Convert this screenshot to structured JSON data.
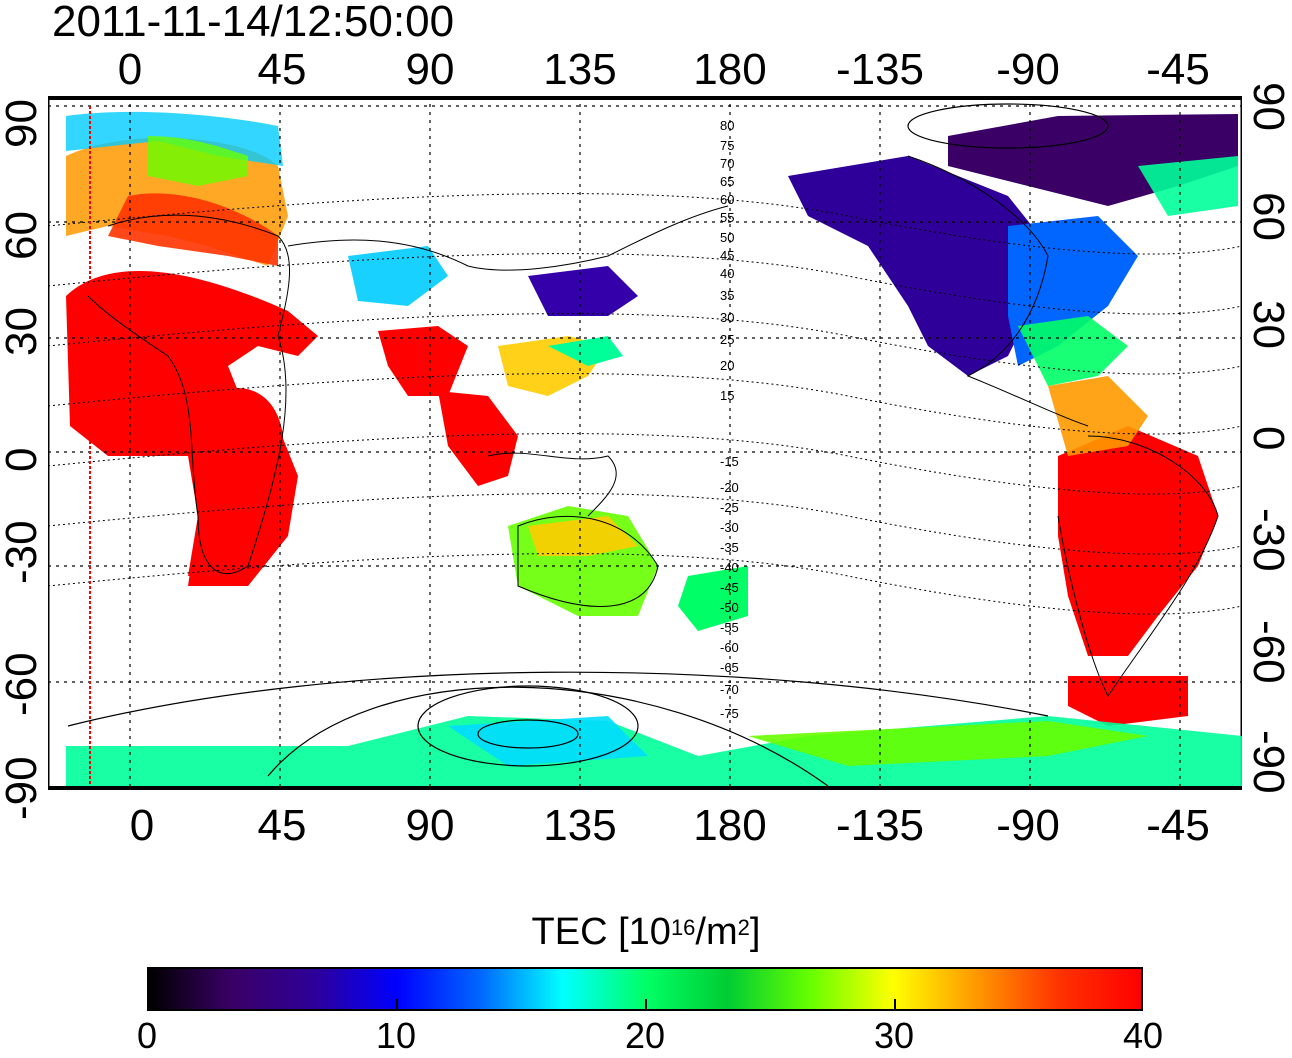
{
  "header": {
    "timestamp": "2011-11-14/12:50:00"
  },
  "map": {
    "top_lon_ticks": [
      "0",
      "45",
      "90",
      "135",
      "180",
      "-135",
      "-90",
      "-45"
    ],
    "bottom_lon_ticks": [
      "0",
      "45",
      "90",
      "135",
      "180",
      "-135",
      "-90",
      "-45"
    ],
    "left_lat_ticks": [
      "90",
      "60",
      "30",
      "0",
      "-30",
      "-60",
      "-90"
    ],
    "right_lat_ticks": [
      "90",
      "60",
      "30",
      "0",
      "-30",
      "-60",
      "-90"
    ],
    "contour_labels": [
      "80",
      "75",
      "70",
      "65",
      "60",
      "55",
      "50",
      "45",
      "40",
      "35",
      "30",
      "25",
      "20",
      "15",
      "-15",
      "-20",
      "-25",
      "-30",
      "-35",
      "-40",
      "-45",
      "-50",
      "-55",
      "-60",
      "-65",
      "-70",
      "-75"
    ]
  },
  "colorbar": {
    "title_main": "TEC  [10",
    "title_sup1": "16",
    "title_mid": "/m",
    "title_sup2": "2",
    "title_end": "]",
    "ticks": [
      "0",
      "10",
      "20",
      "30",
      "40"
    ],
    "min": 0,
    "max": 40,
    "colors": [
      "#000000",
      "#3a0066",
      "#2e0099",
      "#0000ff",
      "#0066ff",
      "#00ffff",
      "#00ff66",
      "#00cc33",
      "#66ff00",
      "#ffff00",
      "#ff9900",
      "#ff3300",
      "#ff0000"
    ]
  }
}
